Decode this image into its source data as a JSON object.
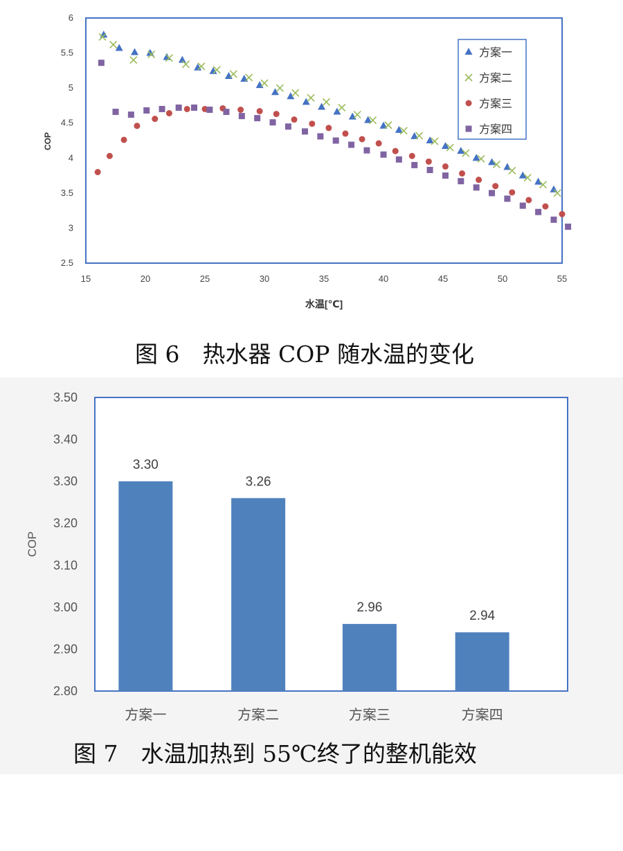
{
  "chart_data": [
    {
      "type": "scatter",
      "title": "",
      "xlabel": "水温[℃]",
      "ylabel": "COP",
      "xlim": [
        15,
        55
      ],
      "ylim": [
        2.5,
        6
      ],
      "xticks": [
        "15",
        "20",
        "25",
        "30",
        "35",
        "40",
        "45",
        "50",
        "55"
      ],
      "yticks": [
        "2.5",
        "3",
        "3.5",
        "4",
        "4.5",
        "5",
        "5.5",
        "6"
      ],
      "legend_position": "top-right",
      "series": [
        {
          "name": "方案一",
          "marker": "triangle",
          "color": "#4472c4",
          "x": [
            16.5,
            17.8,
            19.1,
            20.4,
            21.8,
            23.1,
            24.4,
            25.7,
            27.0,
            28.3,
            29.6,
            30.9,
            32.2,
            33.5,
            34.8,
            36.1,
            37.4,
            38.7,
            40.0,
            41.3,
            42.6,
            43.9,
            45.2,
            46.5,
            47.8,
            49.1,
            50.4,
            51.7,
            53.0,
            54.3
          ],
          "y": [
            5.76,
            5.57,
            5.51,
            5.5,
            5.44,
            5.4,
            5.29,
            5.24,
            5.17,
            5.13,
            5.04,
            4.94,
            4.88,
            4.8,
            4.73,
            4.66,
            4.59,
            4.54,
            4.46,
            4.4,
            4.31,
            4.25,
            4.17,
            4.1,
            4.0,
            3.94,
            3.87,
            3.75,
            3.66,
            3.55
          ]
        },
        {
          "name": "方案二",
          "marker": "cross",
          "color": "#9bbb59",
          "x": [
            16.4,
            17.3,
            19.0,
            20.5,
            22.0,
            23.4,
            24.7,
            26.0,
            27.4,
            28.7,
            30.0,
            31.3,
            32.6,
            33.9,
            35.2,
            36.5,
            37.8,
            39.1,
            40.4,
            41.7,
            43.0,
            44.3,
            45.6,
            46.9,
            48.2,
            49.5,
            50.8,
            52.1,
            53.4,
            54.6
          ],
          "y": [
            5.73,
            5.62,
            5.4,
            5.48,
            5.43,
            5.34,
            5.31,
            5.26,
            5.2,
            5.15,
            5.07,
            5.0,
            4.93,
            4.86,
            4.8,
            4.72,
            4.62,
            4.54,
            4.47,
            4.39,
            4.32,
            4.24,
            4.15,
            4.07,
            3.99,
            3.91,
            3.82,
            3.72,
            3.62,
            3.5
          ]
        },
        {
          "name": "方案三",
          "marker": "circle",
          "color": "#c0504d",
          "x": [
            16.0,
            17.0,
            18.2,
            19.3,
            20.8,
            22.0,
            23.5,
            25.0,
            26.5,
            28.0,
            29.6,
            31.0,
            32.5,
            34.0,
            35.4,
            36.8,
            38.2,
            39.6,
            41.0,
            42.4,
            43.8,
            45.2,
            46.6,
            48.0,
            49.4,
            50.8,
            52.2,
            53.6,
            55.0
          ],
          "y": [
            3.8,
            4.03,
            4.26,
            4.46,
            4.56,
            4.64,
            4.7,
            4.7,
            4.71,
            4.69,
            4.67,
            4.63,
            4.55,
            4.49,
            4.43,
            4.35,
            4.27,
            4.21,
            4.1,
            4.03,
            3.95,
            3.88,
            3.78,
            3.69,
            3.6,
            3.51,
            3.4,
            3.31,
            3.2
          ]
        },
        {
          "name": "方案四",
          "marker": "square",
          "color": "#8064a2",
          "x": [
            16.3,
            17.5,
            18.8,
            20.1,
            21.4,
            22.8,
            24.1,
            25.4,
            26.8,
            28.1,
            29.4,
            30.7,
            32.0,
            33.4,
            34.7,
            36.0,
            37.3,
            38.6,
            40.0,
            41.3,
            42.6,
            43.9,
            45.2,
            46.5,
            47.8,
            49.1,
            50.4,
            51.7,
            53.0,
            54.3,
            55.5
          ],
          "y": [
            5.36,
            4.66,
            4.62,
            4.68,
            4.7,
            4.72,
            4.72,
            4.69,
            4.66,
            4.6,
            4.57,
            4.51,
            4.45,
            4.38,
            4.31,
            4.25,
            4.19,
            4.11,
            4.05,
            3.98,
            3.9,
            3.83,
            3.75,
            3.67,
            3.58,
            3.5,
            3.42,
            3.32,
            3.23,
            3.12,
            3.02
          ]
        }
      ]
    },
    {
      "type": "bar",
      "title": "",
      "xlabel": "",
      "ylabel": "COP",
      "ylim": [
        2.8,
        3.5
      ],
      "yticks": [
        "2.80",
        "2.90",
        "3.00",
        "3.10",
        "3.20",
        "3.30",
        "3.40",
        "3.50"
      ],
      "categories": [
        "方案一",
        "方案二",
        "方案三",
        "方案四"
      ],
      "values": [
        3.3,
        3.26,
        2.96,
        2.94
      ],
      "value_labels": [
        "3.30",
        "3.26",
        "2.96",
        "2.94"
      ],
      "color": "#4f81bd"
    }
  ],
  "captions": {
    "fig6": "图 6　热水器 COP 随水温的变化",
    "fig7": "图 7　水温加热到 55℃终了的整机能效"
  }
}
